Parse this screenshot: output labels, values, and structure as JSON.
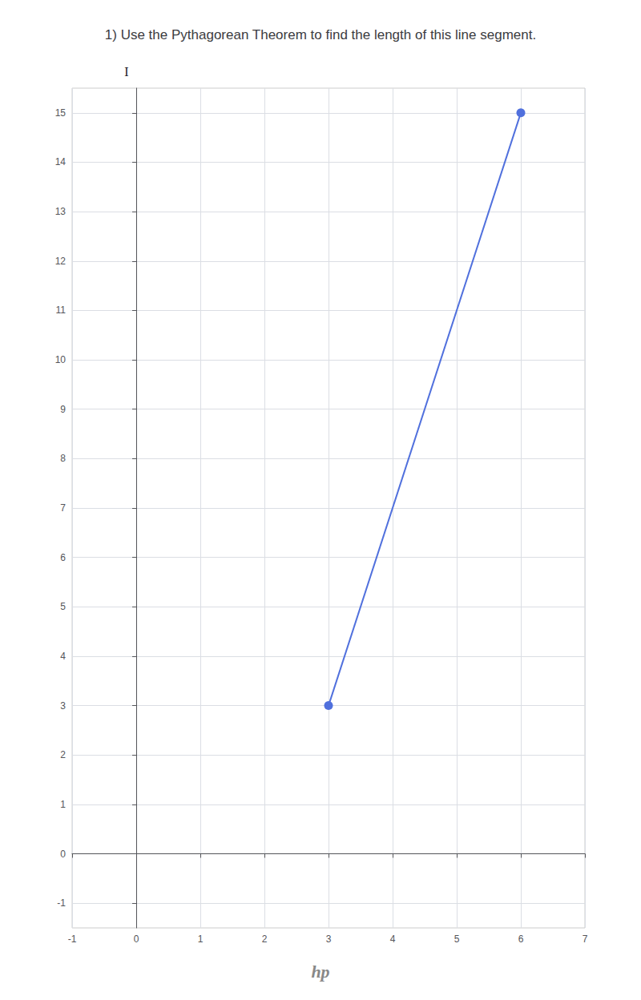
{
  "chart_data": {
    "type": "line",
    "title": "1) Use the Pythagorean Theorem to find the length of this line segment.",
    "x": [
      3,
      6
    ],
    "values": [
      3,
      15
    ],
    "marker": "circle",
    "xlim": [
      -1,
      7
    ],
    "xticks": [
      -1,
      0,
      1,
      2,
      3,
      4,
      5,
      6,
      7
    ],
    "ylim": [
      -1.5,
      15.5
    ],
    "yticks": [
      -1,
      0,
      1,
      2,
      3,
      4,
      5,
      6,
      7,
      8,
      9,
      10,
      11,
      12,
      13,
      14,
      15
    ],
    "grid": true,
    "annotations": [
      {
        "text": "I",
        "x": -0.15,
        "y": 15.7
      },
      {
        "text": "hp"
      }
    ]
  }
}
